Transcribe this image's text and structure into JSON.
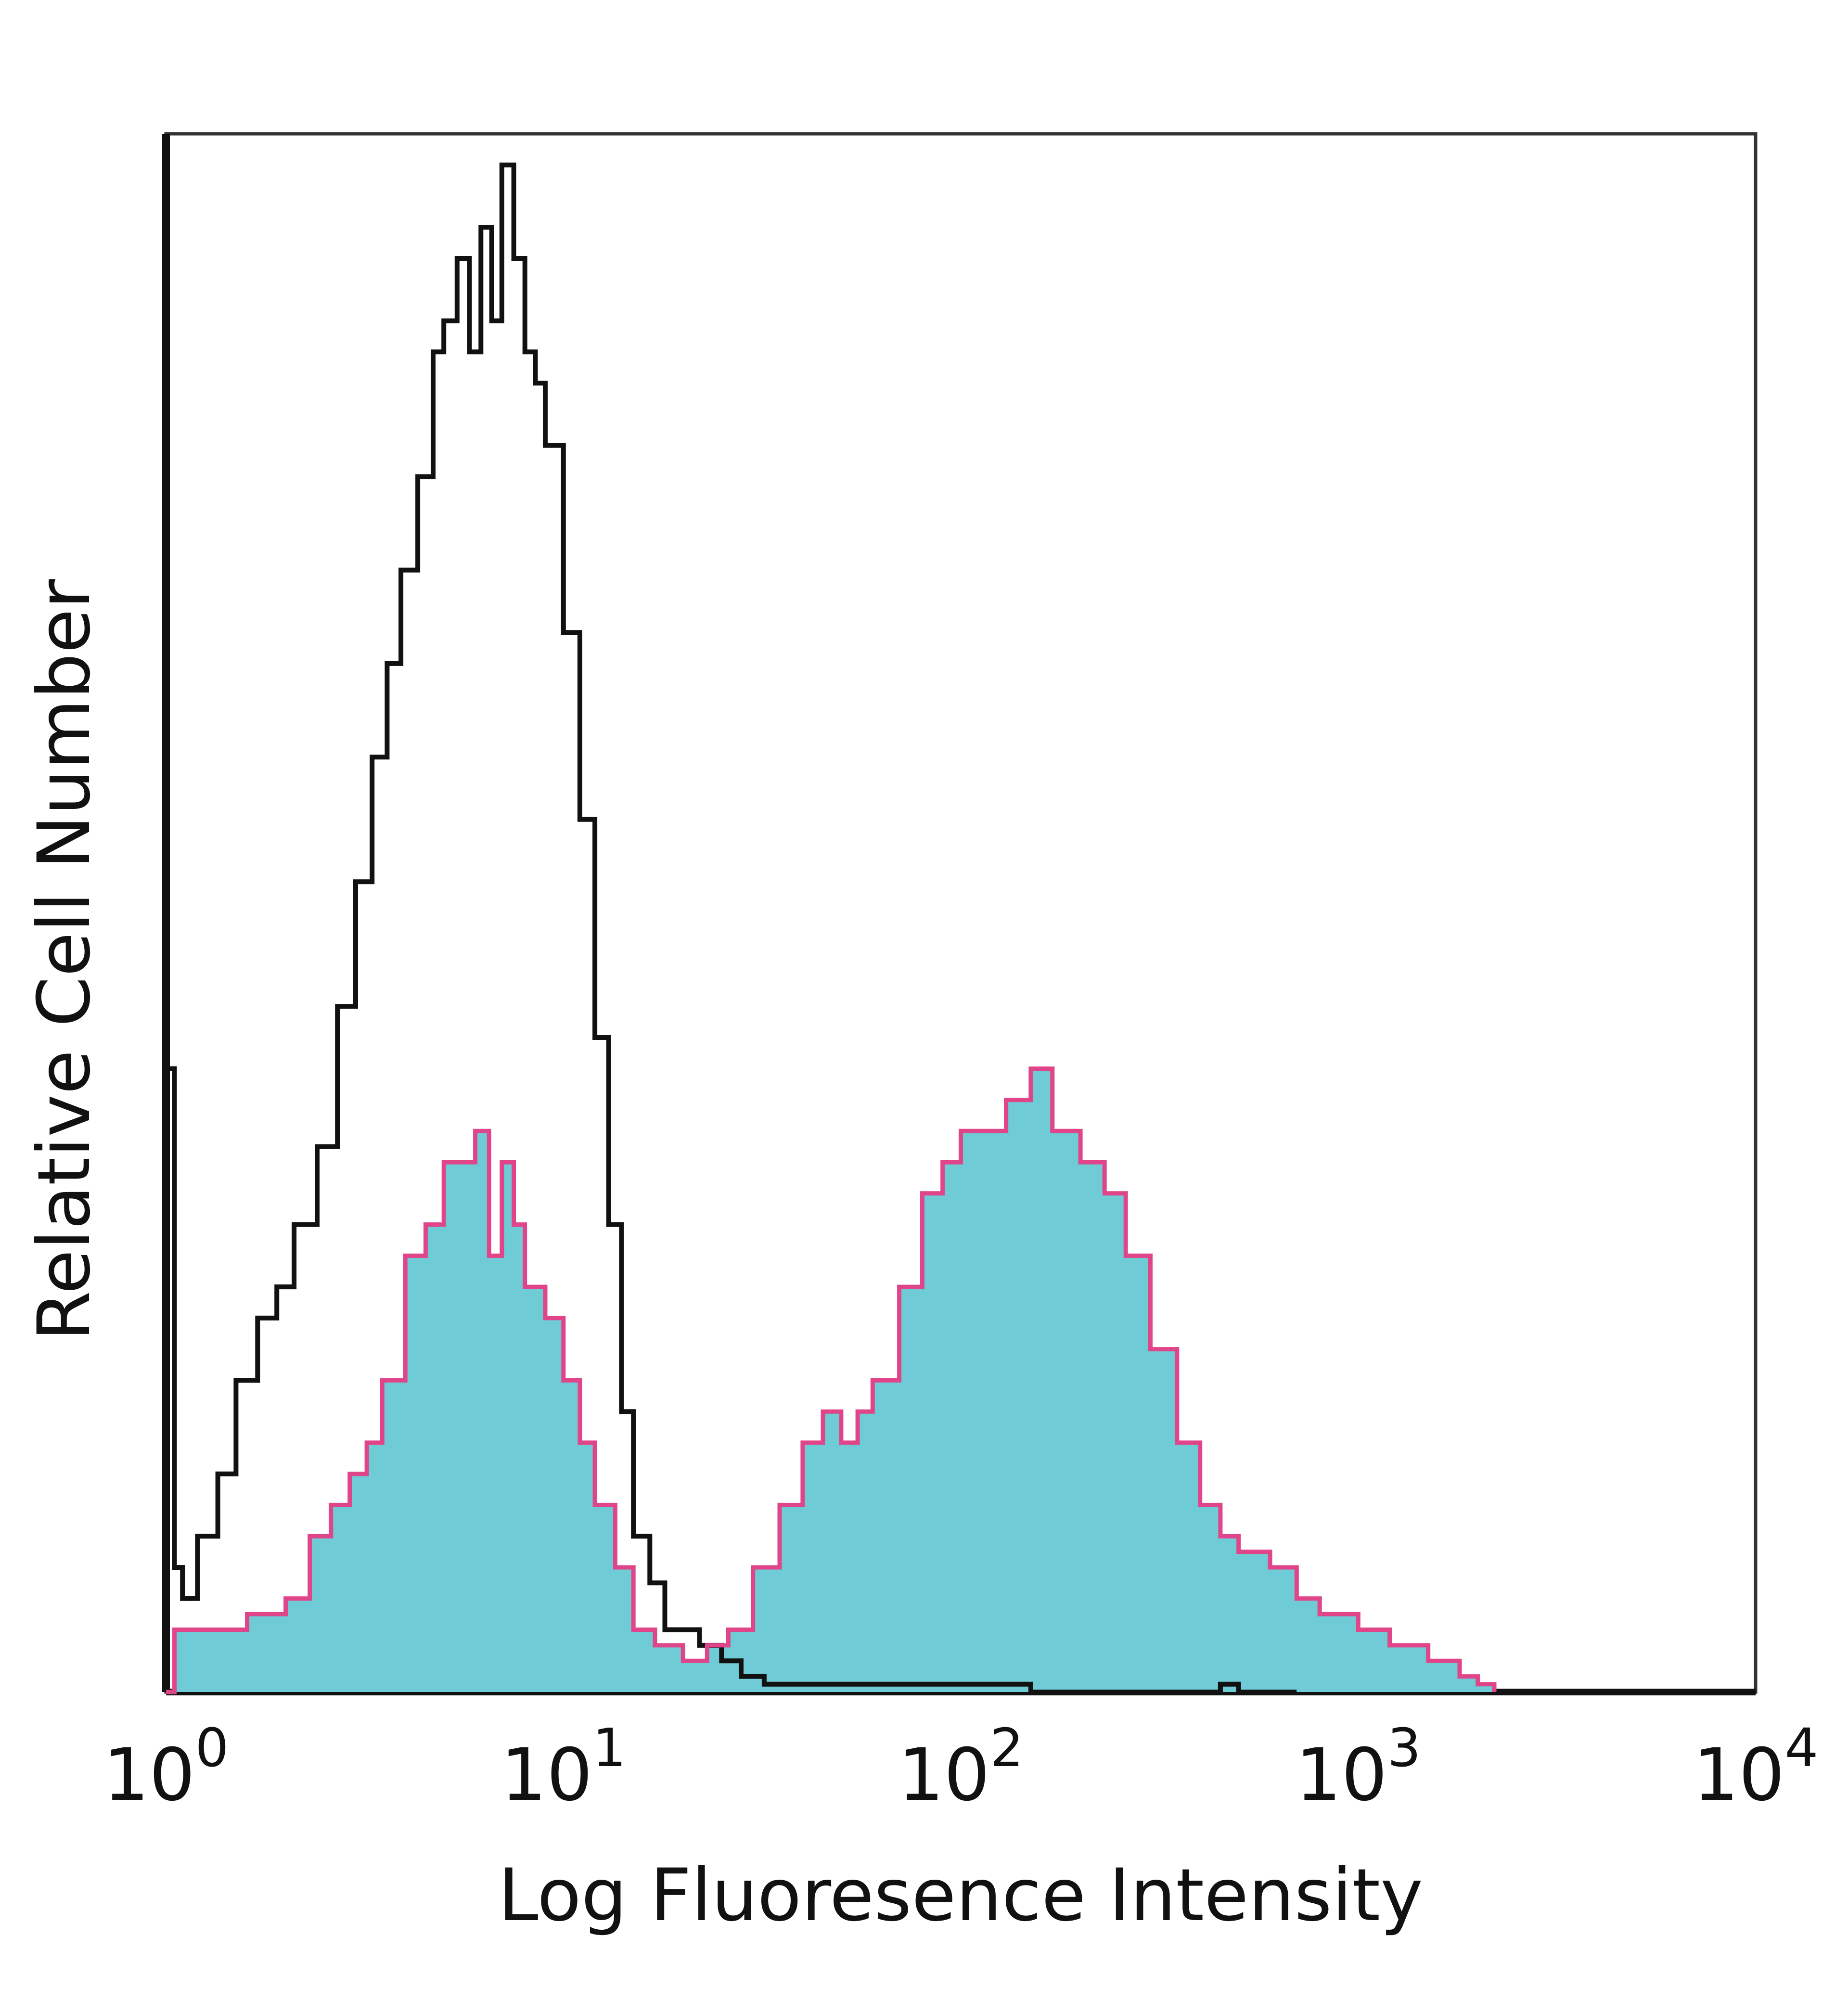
{
  "chart_data": {
    "type": "area",
    "title": "",
    "xlabel": "Log Fluoresence Intensity",
    "ylabel": "Relative Cell Number",
    "x_scale": "log",
    "xlim": [
      1,
      10000
    ],
    "ylim": [
      0,
      100
    ],
    "grid": false,
    "legend": "none",
    "xticks": [
      {
        "base": "10",
        "exp": "0"
      },
      {
        "base": "10",
        "exp": "1"
      },
      {
        "base": "10",
        "exp": "2"
      },
      {
        "base": "10",
        "exp": "3"
      },
      {
        "base": "10",
        "exp": "4"
      }
    ],
    "series": [
      {
        "style": "outline",
        "color": "#111111",
        "x": [
          1.0,
          1.05,
          1.1,
          1.2,
          1.35,
          1.5,
          1.7,
          1.9,
          2.1,
          2.4,
          2.7,
          3.0,
          3.3,
          3.6,
          3.9,
          4.3,
          4.7,
          5.0,
          5.4,
          5.8,
          6.2,
          6.6,
          7.0,
          7.5,
          8.0,
          8.5,
          9.0,
          10.0,
          11.0,
          12.0,
          13.0,
          14.0,
          15.0,
          16.5,
          18.0,
          20.0,
          22.0,
          25.0,
          28.0,
          32.0,
          40.0,
          60.0,
          80.0,
          150.0,
          300.0,
          450.0,
          500.0,
          700.0
        ],
        "values": [
          40,
          8,
          6,
          10,
          14,
          20,
          24,
          26,
          30,
          35,
          44,
          52,
          60,
          66,
          72,
          78,
          86,
          88,
          92,
          86,
          94,
          88,
          98,
          92,
          86,
          84,
          80,
          68,
          56,
          42,
          30,
          18,
          10,
          7,
          4,
          4,
          3,
          2,
          1,
          0.5,
          0.5,
          0.5,
          0.5,
          0,
          0,
          0.5,
          0,
          0
        ]
      },
      {
        "style": "filled",
        "fill": "#6fcbd5",
        "color": "#e0458a",
        "x": [
          1.0,
          1.05,
          1.2,
          1.4,
          1.6,
          1.8,
          2.0,
          2.3,
          2.6,
          2.9,
          3.2,
          3.5,
          4.0,
          4.5,
          5.0,
          5.5,
          6.0,
          6.5,
          7.0,
          7.5,
          8.0,
          9.0,
          10.0,
          11.0,
          12.0,
          13.5,
          15.0,
          17.0,
          20.0,
          23.0,
          26.0,
          30.0,
          35.0,
          40.0,
          45.0,
          50.0,
          55.0,
          60.0,
          70.0,
          80.0,
          90.0,
          100.0,
          115.0,
          130.0,
          150.0,
          170.0,
          200.0,
          230.0,
          260.0,
          300.0,
          350.0,
          400.0,
          450.0,
          500.0,
          600.0,
          700.0,
          800.0,
          1000.0,
          1200.0,
          1500.0,
          1800.0,
          2000.0,
          2200.0
        ],
        "values": [
          0,
          4,
          4,
          4,
          5,
          5,
          6,
          10,
          12,
          14,
          16,
          20,
          28,
          30,
          34,
          34,
          36,
          28,
          34,
          30,
          26,
          24,
          20,
          16,
          12,
          8,
          4,
          3,
          2,
          3,
          4,
          8,
          12,
          16,
          18,
          16,
          18,
          20,
          26,
          32,
          34,
          36,
          36,
          38,
          40,
          36,
          34,
          32,
          28,
          22,
          16,
          12,
          10,
          9,
          8,
          6,
          5,
          4,
          3,
          2,
          1,
          0.5,
          0
        ]
      }
    ]
  }
}
